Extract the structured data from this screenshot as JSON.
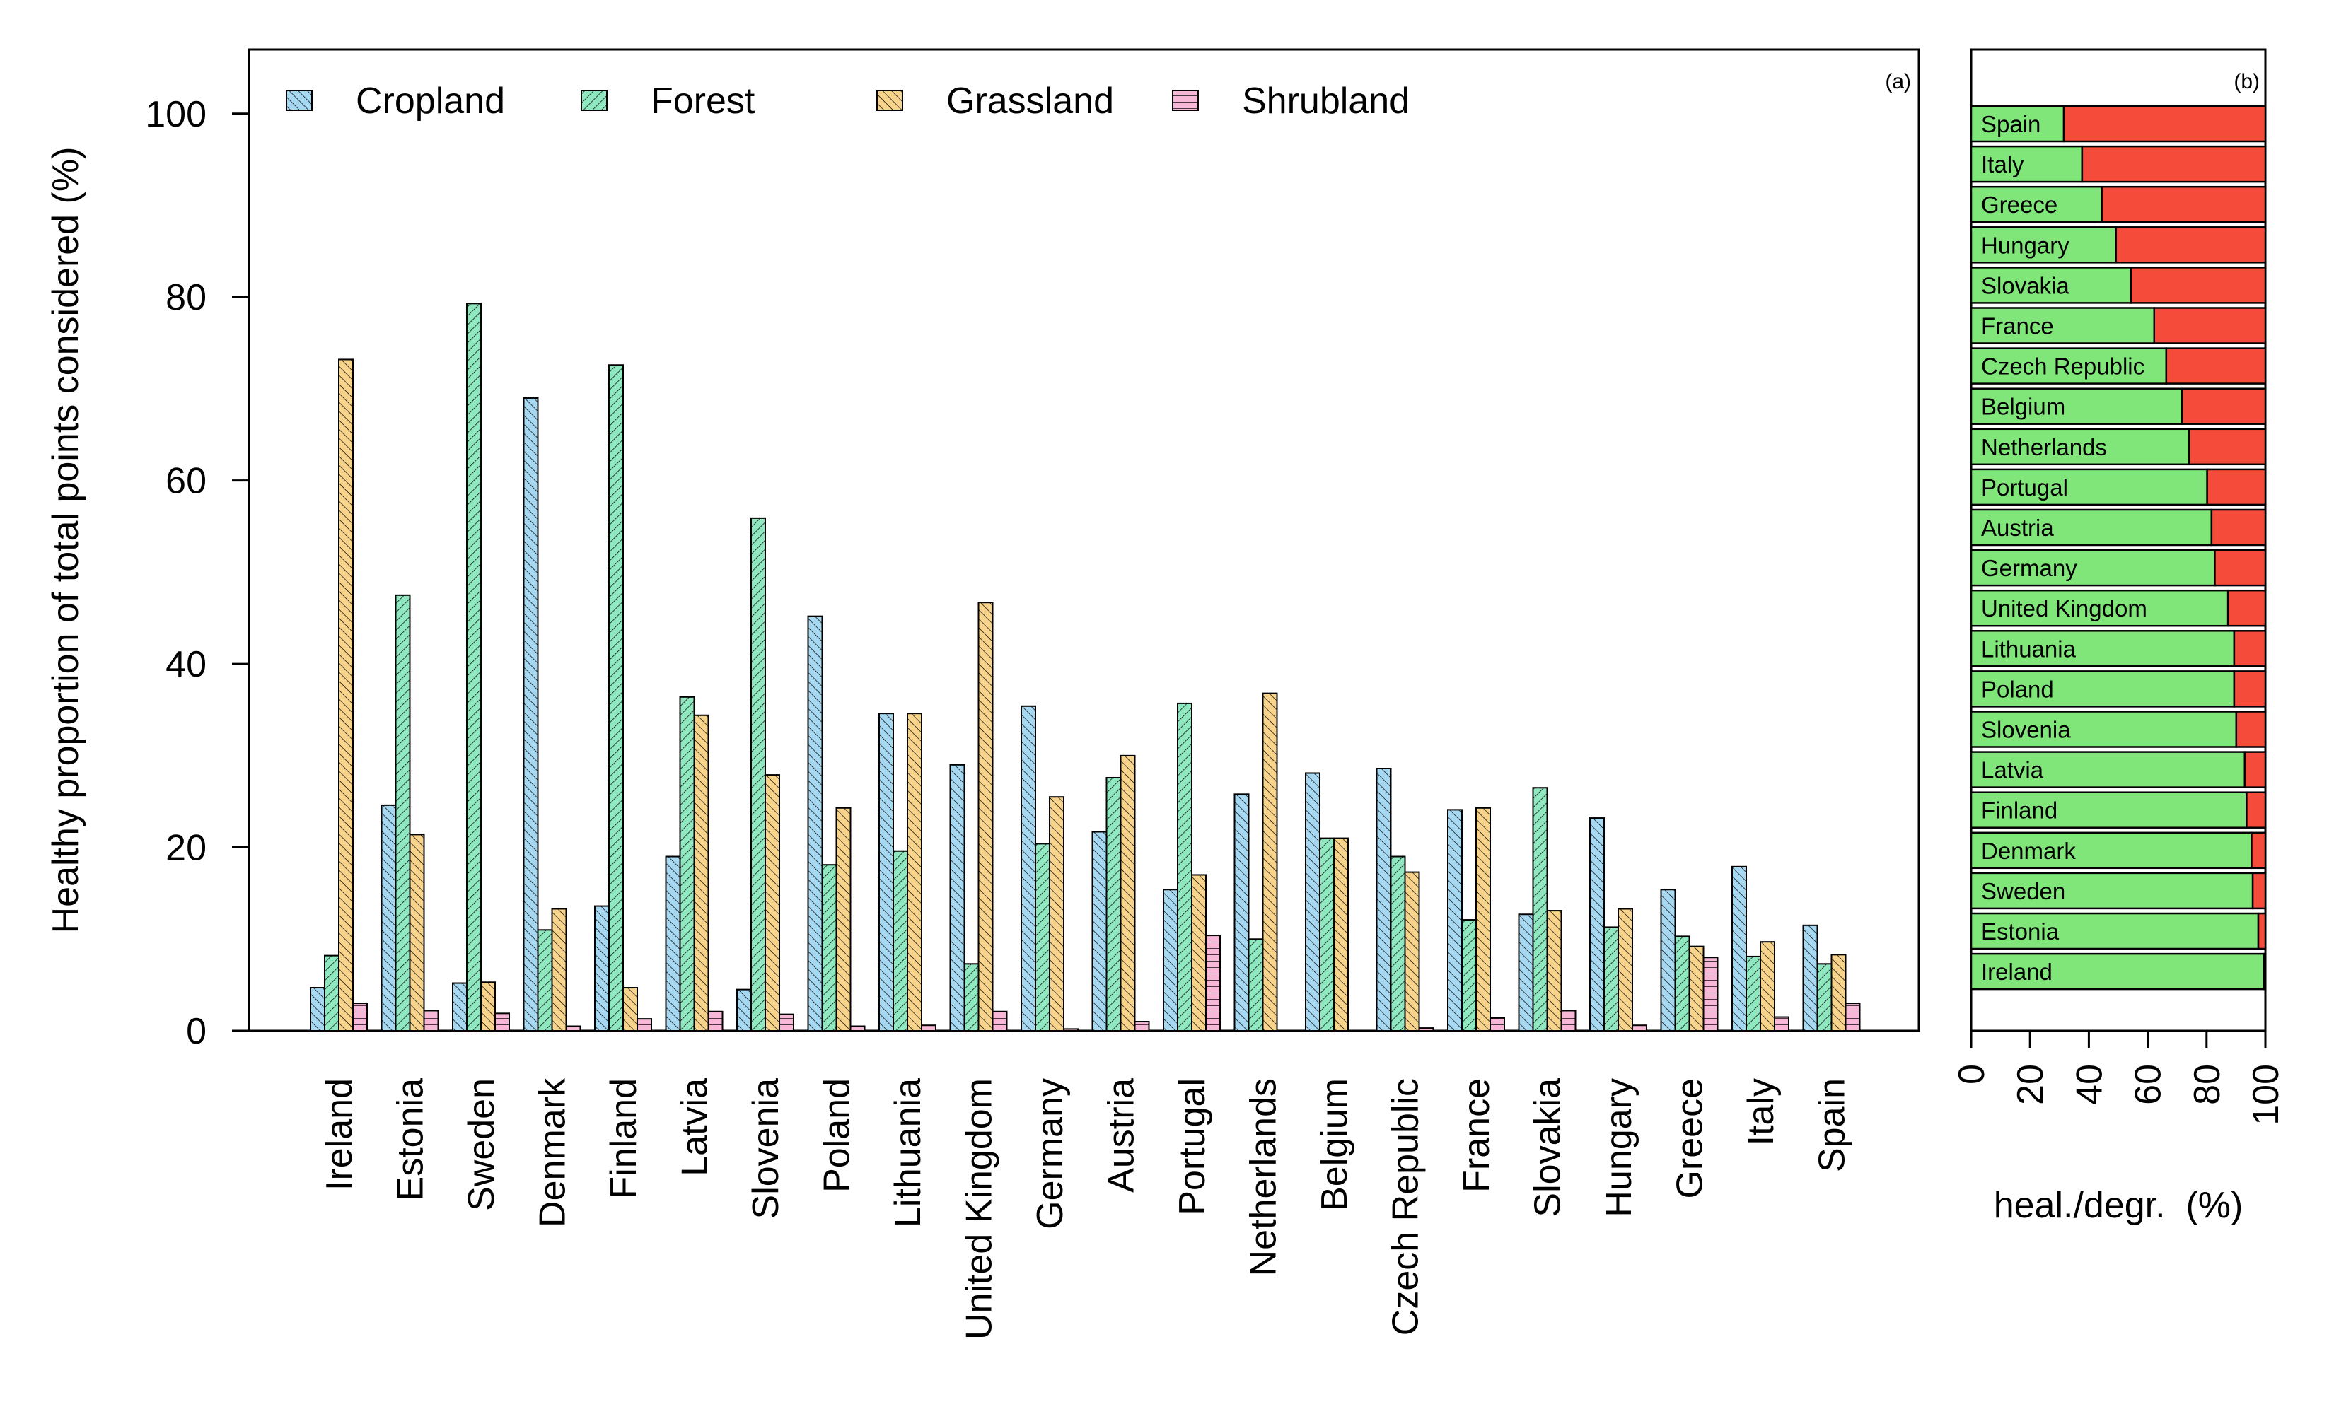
{
  "chart_data": [
    {
      "panel": "(a)",
      "type": "bar",
      "ylabel": "Healthy proportion of total points considered (%)",
      "ylim": [
        0,
        107
      ],
      "yticks": [
        0,
        20,
        40,
        60,
        80,
        100
      ],
      "grid": false,
      "legend": {
        "position": "top"
      },
      "categories": [
        "Ireland",
        "Estonia",
        "Sweden",
        "Denmark",
        "Finland",
        "Latvia",
        "Slovenia",
        "Poland",
        "Lithuania",
        "United Kingdom",
        "Germany",
        "Austria",
        "Portugal",
        "Netherlands",
        "Belgium",
        "Czech Republic",
        "France",
        "Slovakia",
        "Hungary",
        "Greece",
        "Italy",
        "Spain"
      ],
      "series": [
        {
          "name": "Cropland",
          "color": "#a6d8f2",
          "values": [
            4.7,
            24.6,
            5.2,
            69.0,
            13.6,
            19.0,
            4.5,
            45.2,
            34.6,
            29.0,
            35.4,
            21.7,
            15.4,
            25.8,
            28.1,
            28.6,
            24.1,
            12.7,
            23.2,
            15.4,
            17.9,
            11.5
          ]
        },
        {
          "name": "Forest",
          "color": "#8fe8c0",
          "values": [
            8.2,
            47.5,
            79.3,
            11.0,
            72.6,
            36.4,
            55.9,
            18.1,
            19.6,
            7.3,
            20.4,
            27.6,
            35.7,
            10.0,
            21.0,
            19.0,
            12.1,
            26.5,
            11.3,
            10.3,
            8.1,
            7.3
          ]
        },
        {
          "name": "Grassland",
          "color": "#f7d38c",
          "values": [
            73.2,
            21.4,
            5.3,
            13.3,
            4.7,
            34.4,
            27.9,
            24.3,
            34.6,
            46.7,
            25.5,
            30.0,
            17.0,
            36.8,
            21.0,
            17.3,
            24.3,
            13.1,
            13.3,
            9.2,
            9.7,
            8.3
          ]
        },
        {
          "name": "Shrubland",
          "color": "#f7b8d8",
          "values": [
            3.0,
            2.2,
            1.9,
            0.5,
            1.3,
            2.1,
            1.8,
            0.5,
            0.6,
            2.1,
            0.2,
            1.0,
            10.4,
            0.0,
            0.0,
            0.3,
            1.4,
            2.2,
            0.6,
            8.0,
            1.5,
            3.0
          ]
        }
      ]
    },
    {
      "panel": "(b)",
      "type": "bar",
      "orientation": "horizontal",
      "stacked": true,
      "xlabel": "heal./degr.  (%)",
      "xlim": [
        0,
        100
      ],
      "xticks": [
        0,
        20,
        40,
        60,
        80,
        100
      ],
      "categories": [
        "Spain",
        "Italy",
        "Greece",
        "Hungary",
        "Slovakia",
        "France",
        "Czech Republic",
        "Belgium",
        "Netherlands",
        "Portugal",
        "Austria",
        "Germany",
        "United Kingdom",
        "Lithuania",
        "Poland",
        "Slovenia",
        "Latvia",
        "Finland",
        "Denmark",
        "Sweden",
        "Estonia",
        "Ireland"
      ],
      "series": [
        {
          "color": "#80e67a",
          "values": [
            31.5,
            37.7,
            44.4,
            49.2,
            54.3,
            62.2,
            66.3,
            71.7,
            74.1,
            80.2,
            81.7,
            82.8,
            87.3,
            89.4,
            89.4,
            90.1,
            93.0,
            93.6,
            95.3,
            95.7,
            97.6,
            99.5
          ]
        },
        {
          "color": "#f44b3a",
          "values": [
            68.5,
            62.3,
            55.6,
            50.8,
            45.7,
            37.8,
            33.7,
            28.3,
            25.9,
            19.8,
            18.3,
            17.2,
            12.7,
            10.6,
            10.6,
            9.9,
            7.0,
            6.4,
            4.7,
            4.3,
            2.4,
            0.5
          ]
        }
      ]
    }
  ]
}
